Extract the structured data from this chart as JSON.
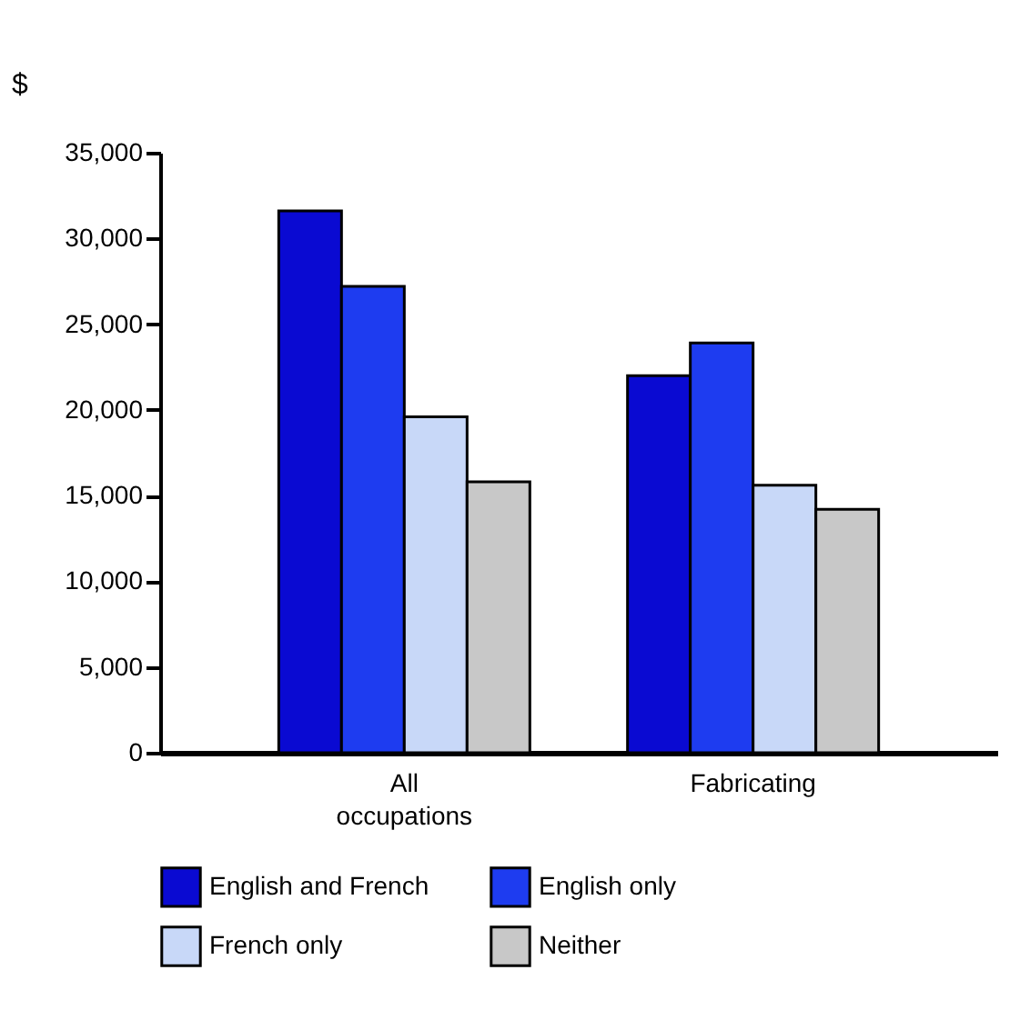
{
  "chart_data": {
    "type": "bar",
    "ylabel": "$",
    "categories": [
      "All occupations",
      "Fabricating"
    ],
    "series": [
      {
        "name": "English and French",
        "color": "#0a0ad2",
        "values": [
          31600,
          22000
        ]
      },
      {
        "name": "English only",
        "color": "#1e3cf0",
        "values": [
          27200,
          23900
        ]
      },
      {
        "name": "French only",
        "color": "#c8d8f8",
        "values": [
          19600,
          15600
        ]
      },
      {
        "name": "Neither",
        "color": "#c8c8c8",
        "values": [
          15800,
          14200
        ]
      }
    ],
    "ylim": [
      0,
      35000
    ],
    "yticks": [
      0,
      {
        "value": 5000,
        "label": "5,000"
      },
      {
        "value": 10000,
        "label": "10,000"
      },
      {
        "value": 15000,
        "label": "15,000"
      },
      {
        "value": 20000,
        "label": "20,000"
      },
      {
        "value": 25000,
        "label": "25,000"
      },
      {
        "value": 30000,
        "label": "30,000"
      },
      {
        "value": 35000,
        "label": "35,000"
      }
    ],
    "grid": false,
    "legend": "bottom"
  }
}
